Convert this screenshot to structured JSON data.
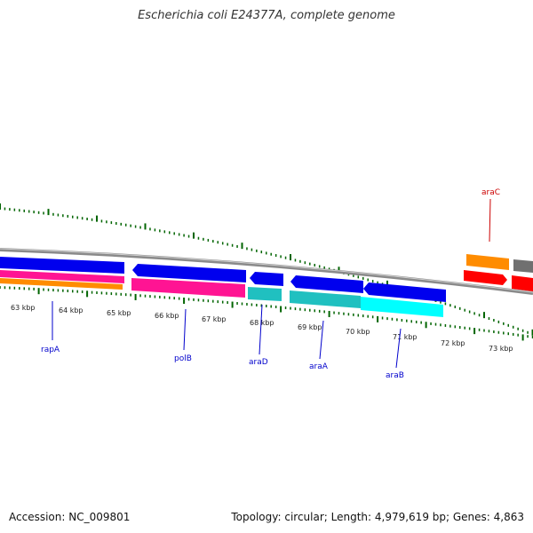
{
  "title": "Escherichia coli E24377A, complete genome",
  "footer": {
    "accession": "Accession: NC_009801",
    "stats": "Topology: circular; Length: 4,979,619 bp; Genes: 4,863"
  },
  "ticks": [
    "63 kbp",
    "64 kbp",
    "65 kbp",
    "66 kbp",
    "67 kbp",
    "68 kbp",
    "69 kbp",
    "70 kbp",
    "71 kbp",
    "72 kbp",
    "73 kbp"
  ],
  "genes": [
    "rapA",
    "polB",
    "araD",
    "araA",
    "araB",
    "araC"
  ],
  "colors": {
    "cds": "#0000ee",
    "rna": "#ff1493",
    "orange": "#ff8c00",
    "teal": "#20c0c0",
    "cyan": "#00ffff",
    "red": "#ff0000",
    "backbone": "#808080",
    "tick": "#006400",
    "label_blue": "#0000cc",
    "label_red": "#cc0000"
  }
}
